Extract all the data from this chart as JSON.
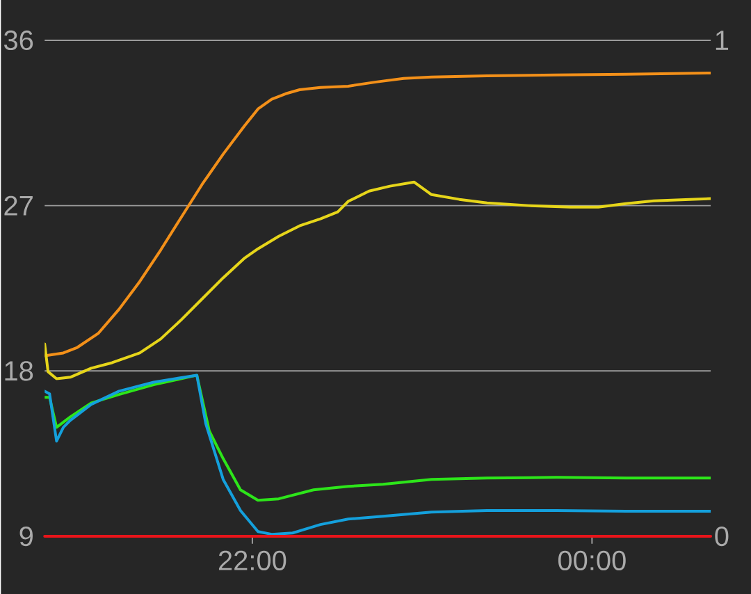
{
  "chart_data": {
    "type": "line",
    "xlim": [
      20.777,
      24.699
    ],
    "xticks": [
      {
        "value": 22,
        "label": "22:00"
      },
      {
        "value": 24,
        "label": "00:00"
      }
    ],
    "ylim": [
      9,
      36
    ],
    "yticks": [
      9,
      18,
      27,
      36
    ],
    "y2lim": [
      0,
      1
    ],
    "y2ticks": [
      0,
      1
    ],
    "grid": "y",
    "series": [
      {
        "color": "#f39019",
        "x": [
          20.777,
          20.887,
          20.969,
          21.092,
          21.215,
          21.337,
          21.46,
          21.583,
          21.705,
          21.828,
          21.951,
          22.033,
          22.114,
          22.196,
          22.278,
          22.401,
          22.564,
          22.728,
          22.891,
          23.055,
          23.382,
          23.791,
          24.2,
          24.699
        ],
        "values": [
          18.83,
          18.98,
          19.28,
          20.04,
          21.36,
          22.87,
          24.58,
          26.39,
          28.17,
          29.8,
          31.31,
          32.26,
          32.79,
          33.09,
          33.31,
          33.43,
          33.5,
          33.73,
          33.92,
          34.0,
          34.07,
          34.11,
          34.15,
          34.22
        ]
      },
      {
        "color": "#e6d51a",
        "x": [
          20.777,
          20.797,
          20.847,
          20.928,
          21.051,
          21.174,
          21.337,
          21.46,
          21.583,
          21.705,
          21.828,
          21.951,
          22.033,
          22.155,
          22.278,
          22.401,
          22.503,
          22.564,
          22.687,
          22.81,
          22.953,
          23.055,
          23.219,
          23.382,
          23.628,
          23.873,
          24.037,
          24.2,
          24.364,
          24.699
        ],
        "values": [
          19.47,
          17.96,
          17.58,
          17.66,
          18.15,
          18.45,
          18.98,
          19.74,
          20.8,
          21.93,
          23.07,
          24.12,
          24.65,
          25.33,
          25.9,
          26.28,
          26.66,
          27.23,
          27.79,
          28.06,
          28.28,
          27.6,
          27.34,
          27.15,
          27.0,
          26.92,
          26.92,
          27.11,
          27.26,
          27.38
        ]
      },
      {
        "color": "#2de51a",
        "x": [
          20.777,
          20.806,
          20.847,
          20.928,
          21.051,
          21.215,
          21.419,
          21.673,
          21.746,
          21.828,
          21.93,
          22.033,
          22.155,
          22.36,
          22.564,
          22.769,
          23.055,
          23.382,
          23.791,
          24.2,
          24.699
        ],
        "values": [
          16.56,
          16.56,
          14.93,
          15.5,
          16.26,
          16.72,
          17.25,
          17.77,
          14.74,
          13.23,
          11.53,
          10.96,
          11.04,
          11.53,
          11.72,
          11.83,
          12.1,
          12.17,
          12.21,
          12.17,
          12.17
        ]
      },
      {
        "color": "#14a0dc",
        "x": [
          20.777,
          20.806,
          20.847,
          20.887,
          20.928,
          21.051,
          21.215,
          21.419,
          21.673,
          21.726,
          21.828,
          21.93,
          22.033,
          22.114,
          22.237,
          22.401,
          22.564,
          22.769,
          23.055,
          23.382,
          23.791,
          24.2,
          24.699
        ],
        "values": [
          16.9,
          16.75,
          14.18,
          14.93,
          15.31,
          16.18,
          16.9,
          17.39,
          17.77,
          15.12,
          12.1,
          10.4,
          9.26,
          9.11,
          9.18,
          9.64,
          9.94,
          10.09,
          10.32,
          10.4,
          10.4,
          10.36,
          10.36
        ]
      },
      {
        "color": "#e8141a",
        "axis": "y2",
        "x": [
          20.777,
          24.699
        ],
        "values": [
          0,
          0
        ]
      }
    ]
  }
}
